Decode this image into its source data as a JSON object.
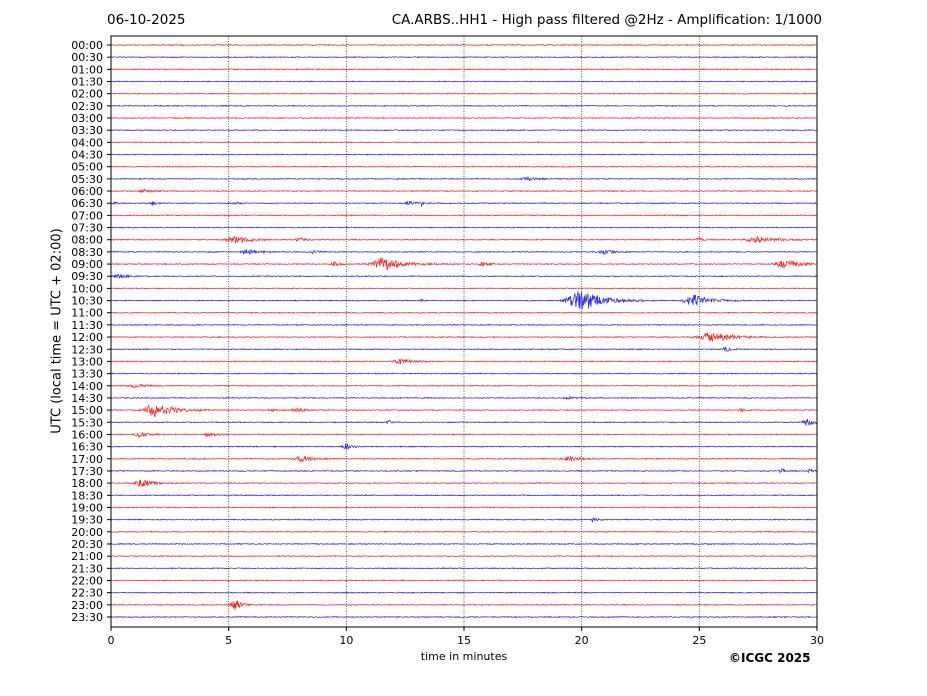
{
  "chart_data": {
    "type": "line",
    "title_left": "06-10-2025",
    "title": "CA.ARBS..HH1 - High pass filtered @2Hz - Amplification: 1/1000",
    "xlabel": "time in minutes",
    "ylabel": "UTC (local time = UTC + 02:00)",
    "copyright": "©ICGC 2025",
    "xlim": [
      0,
      30
    ],
    "xticks": [
      "0",
      "5",
      "10",
      "15",
      "20",
      "25",
      "30"
    ],
    "grid": "vertical dotted at every 5 minutes",
    "rows": [
      "00:00",
      "00:30",
      "01:00",
      "01:30",
      "02:00",
      "02:30",
      "03:00",
      "03:30",
      "04:00",
      "04:30",
      "05:00",
      "05:30",
      "06:00",
      "06:30",
      "07:00",
      "07:30",
      "08:00",
      "08:30",
      "09:00",
      "09:30",
      "10:00",
      "10:30",
      "11:00",
      "11:30",
      "12:00",
      "12:30",
      "13:00",
      "13:30",
      "14:00",
      "14:30",
      "15:00",
      "15:30",
      "16:00",
      "16:30",
      "17:00",
      "17:30",
      "18:00",
      "18:30",
      "19:00",
      "19:30",
      "20:00",
      "20:30",
      "21:00",
      "21:30",
      "22:00",
      "22:30",
      "23:00",
      "23:30"
    ],
    "row_colors": [
      "#ff0000",
      "#0000ff"
    ],
    "events": [
      {
        "row": "05:30",
        "minute": 17.7,
        "amp": 0.15,
        "width": 0.8
      },
      {
        "row": "06:00",
        "minute": 1.4,
        "amp": 0.15,
        "width": 0.8
      },
      {
        "row": "06:30",
        "minute": 0.1,
        "amp": 0.15,
        "width": 0.3
      },
      {
        "row": "06:30",
        "minute": 1.8,
        "amp": 0.12,
        "width": 0.5
      },
      {
        "row": "06:30",
        "minute": 5.3,
        "amp": 0.1,
        "width": 0.5
      },
      {
        "row": "06:30",
        "minute": 12.7,
        "amp": 0.15,
        "width": 0.8
      },
      {
        "row": "06:30",
        "minute": 13.2,
        "amp": 0.35,
        "width": 0.1
      },
      {
        "row": "08:00",
        "minute": 5.3,
        "amp": 0.3,
        "width": 1.2
      },
      {
        "row": "08:00",
        "minute": 8.0,
        "amp": 0.15,
        "width": 0.5
      },
      {
        "row": "08:00",
        "minute": 25.0,
        "amp": 0.12,
        "width": 0.5
      },
      {
        "row": "08:00",
        "minute": 27.5,
        "amp": 0.25,
        "width": 1.5
      },
      {
        "row": "08:30",
        "minute": 5.8,
        "amp": 0.2,
        "width": 0.8
      },
      {
        "row": "08:30",
        "minute": 8.6,
        "amp": 0.12,
        "width": 0.5
      },
      {
        "row": "08:30",
        "minute": 21.0,
        "amp": 0.2,
        "width": 0.8
      },
      {
        "row": "09:00",
        "minute": 9.5,
        "amp": 0.2,
        "width": 0.4
      },
      {
        "row": "09:00",
        "minute": 11.6,
        "amp": 0.55,
        "width": 1.6
      },
      {
        "row": "09:00",
        "minute": 15.8,
        "amp": 0.2,
        "width": 0.5
      },
      {
        "row": "09:00",
        "minute": 28.7,
        "amp": 0.35,
        "width": 1.3
      },
      {
        "row": "09:30",
        "minute": 0.4,
        "amp": 0.15,
        "width": 0.8
      },
      {
        "row": "10:30",
        "minute": 13.2,
        "amp": 0.35,
        "width": 0.1
      },
      {
        "row": "10:30",
        "minute": 20.0,
        "amp": 0.9,
        "width": 1.8
      },
      {
        "row": "10:30",
        "minute": 24.8,
        "amp": 0.45,
        "width": 1.3
      },
      {
        "row": "12:00",
        "minute": 25.6,
        "amp": 0.4,
        "width": 2.0
      },
      {
        "row": "12:30",
        "minute": 26.1,
        "amp": 0.2,
        "width": 0.5
      },
      {
        "row": "13:00",
        "minute": 12.3,
        "amp": 0.2,
        "width": 1.0
      },
      {
        "row": "14:00",
        "minute": 1.0,
        "amp": 0.12,
        "width": 1.0
      },
      {
        "row": "14:30",
        "minute": 19.5,
        "amp": 0.1,
        "width": 0.8
      },
      {
        "row": "15:00",
        "minute": 1.9,
        "amp": 0.6,
        "width": 1.5
      },
      {
        "row": "15:00",
        "minute": 6.8,
        "amp": 0.15,
        "width": 0.3
      },
      {
        "row": "15:00",
        "minute": 7.9,
        "amp": 0.2,
        "width": 0.6
      },
      {
        "row": "15:00",
        "minute": 26.8,
        "amp": 0.12,
        "width": 0.4
      },
      {
        "row": "15:30",
        "minute": 11.8,
        "amp": 0.15,
        "width": 0.3
      },
      {
        "row": "15:30",
        "minute": 29.6,
        "amp": 0.3,
        "width": 0.7
      },
      {
        "row": "16:00",
        "minute": 1.3,
        "amp": 0.2,
        "width": 0.8
      },
      {
        "row": "16:00",
        "minute": 4.2,
        "amp": 0.12,
        "width": 0.8
      },
      {
        "row": "16:30",
        "minute": 10.0,
        "amp": 0.3,
        "width": 0.4
      },
      {
        "row": "17:00",
        "minute": 8.1,
        "amp": 0.25,
        "width": 0.9
      },
      {
        "row": "17:00",
        "minute": 19.5,
        "amp": 0.2,
        "width": 0.9
      },
      {
        "row": "17:30",
        "minute": 28.5,
        "amp": 0.2,
        "width": 0.4
      },
      {
        "row": "17:30",
        "minute": 29.7,
        "amp": 0.15,
        "width": 0.3
      },
      {
        "row": "18:00",
        "minute": 1.3,
        "amp": 0.3,
        "width": 1.0
      },
      {
        "row": "19:30",
        "minute": 20.5,
        "amp": 0.2,
        "width": 0.3
      },
      {
        "row": "23:00",
        "minute": 5.3,
        "amp": 0.45,
        "width": 0.6
      }
    ]
  }
}
